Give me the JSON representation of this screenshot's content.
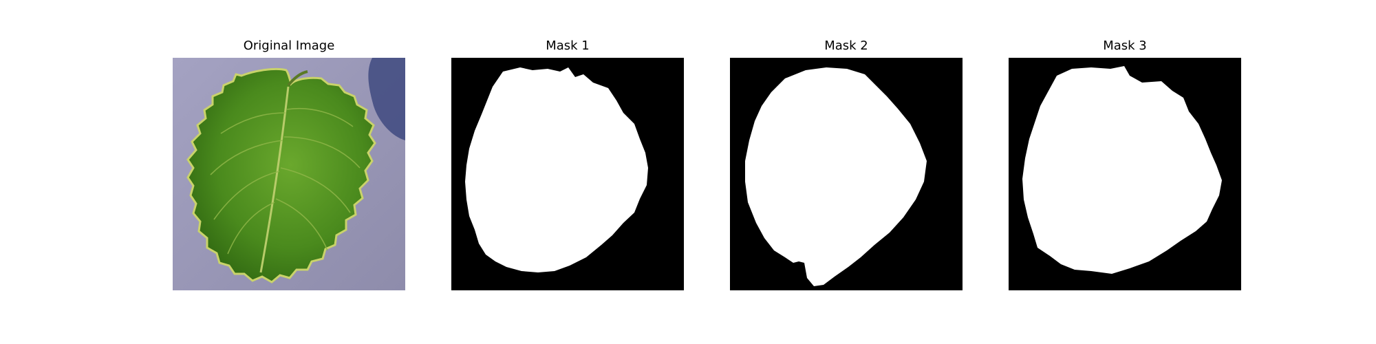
{
  "panels": [
    {
      "title": "Original Image"
    },
    {
      "title": "Mask 1"
    },
    {
      "title": "Mask 2"
    },
    {
      "title": "Mask 3"
    }
  ],
  "colors": {
    "background_purple": "#9e9cb9",
    "leaf_dark_green": "#2f6b12",
    "leaf_mid_green": "#4f8f21",
    "leaf_light_green": "#7fb43f",
    "leaf_edge_yellow": "#c9d36a",
    "mask_foreground": "#ffffff",
    "mask_background": "#000000"
  }
}
